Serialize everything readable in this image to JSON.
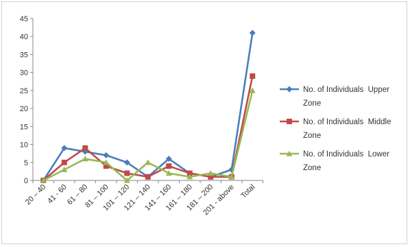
{
  "chart_data": {
    "type": "line",
    "title": "",
    "xlabel": "",
    "ylabel": "",
    "categories": [
      "20 – 40",
      "41 - 60",
      "61 – 80",
      "81 – 100",
      "101 – 120",
      "121 – 140",
      "141 – 160",
      "161 – 180",
      "181 – 200",
      "201 - above",
      "Total"
    ],
    "ylim": [
      0,
      45
    ],
    "yticks": [
      0,
      5,
      10,
      15,
      20,
      25,
      30,
      35,
      40,
      45
    ],
    "grid": false,
    "legend_position": "right",
    "series": [
      {
        "name_lines": [
          "No. of Individuals  Upper",
          "Zone"
        ],
        "marker": "diamond",
        "color": "#4a7ebb",
        "values": [
          0,
          9,
          8,
          7,
          5,
          1,
          6,
          2,
          1,
          3,
          41
        ]
      },
      {
        "name_lines": [
          "No. of Individuals  Middle",
          "Zone"
        ],
        "marker": "square",
        "color": "#be4b48",
        "values": [
          0,
          5,
          9,
          4,
          2,
          1,
          4,
          2,
          1,
          1,
          29
        ]
      },
      {
        "name_lines": [
          "No. of Individuals  Lower",
          "Zone"
        ],
        "marker": "triangle",
        "color": "#98b954",
        "values": [
          0,
          3,
          6,
          5,
          0,
          5,
          2,
          1,
          2,
          1,
          25
        ]
      }
    ]
  }
}
